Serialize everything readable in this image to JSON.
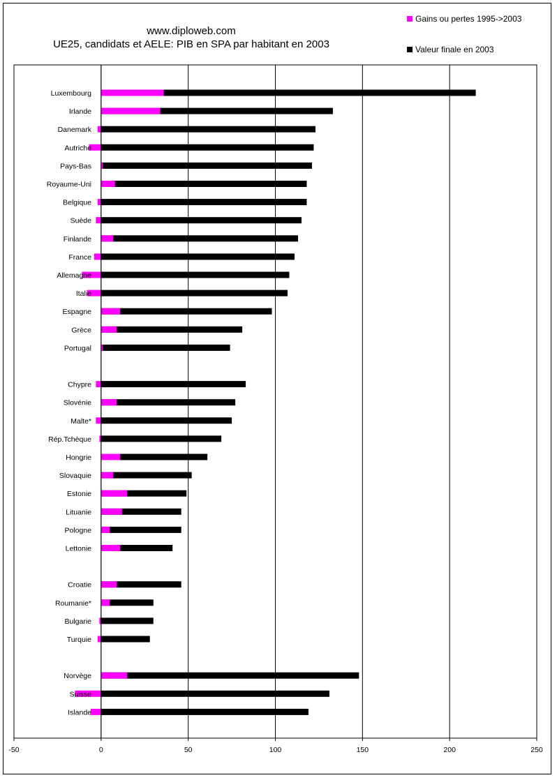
{
  "chart_data": {
    "type": "bar",
    "orientation": "horizontal",
    "stacked": false,
    "title": "www.diploweb.com",
    "subtitle": "UE25, candidats et AELE: PIB en SPA par habitant en 2003",
    "xlim": [
      -50,
      250
    ],
    "x_ticks": [
      "-50",
      "0",
      "50",
      "100",
      "150",
      "200",
      "250"
    ],
    "grid": true,
    "legend_position": "top-right",
    "colors": {
      "gains": "#ff00ff",
      "final": "#000000"
    },
    "series": [
      {
        "name": "Gains ou pertes 1995->2003",
        "color": "#ff00ff"
      },
      {
        "name": "Valeur finale en 2003",
        "color": "#000000"
      }
    ],
    "groups": [
      {
        "rows": [
          {
            "label": "Luxembourg",
            "gain": 36,
            "final": 215
          },
          {
            "label": "Irlande",
            "gain": 34,
            "final": 133
          },
          {
            "label": "Danemark",
            "gain": -2,
            "final": 123
          },
          {
            "label": "Autriche",
            "gain": -7,
            "final": 122
          },
          {
            "label": "Pays-Bas",
            "gain": 1,
            "final": 121
          },
          {
            "label": "Royaume-Uni",
            "gain": 8,
            "final": 118
          },
          {
            "label": "Belgique",
            "gain": -2,
            "final": 118
          },
          {
            "label": "Suède",
            "gain": -3,
            "final": 115
          },
          {
            "label": "Finlande",
            "gain": 7,
            "final": 113
          },
          {
            "label": "France",
            "gain": -4,
            "final": 111
          },
          {
            "label": "Allemagne",
            "gain": -11,
            "final": 108
          },
          {
            "label": "Italie",
            "gain": -8,
            "final": 107
          },
          {
            "label": "Espagne",
            "gain": 11,
            "final": 98
          },
          {
            "label": "Grèce",
            "gain": 9,
            "final": 81
          },
          {
            "label": "Portugal",
            "gain": 1,
            "final": 74
          }
        ]
      },
      {
        "rows": [
          {
            "label": "Chypre",
            "gain": -3,
            "final": 83
          },
          {
            "label": "Slovénie",
            "gain": 9,
            "final": 77
          },
          {
            "label": "Malte*",
            "gain": -3,
            "final": 75
          },
          {
            "label": "Rép.Tchèque",
            "gain": -1,
            "final": 69
          },
          {
            "label": "Hongrie",
            "gain": 11,
            "final": 61
          },
          {
            "label": "Slovaquie",
            "gain": 7,
            "final": 52
          },
          {
            "label": "Estonie",
            "gain": 15,
            "final": 49
          },
          {
            "label": "Lituanie",
            "gain": 12,
            "final": 46
          },
          {
            "label": "Pologne",
            "gain": 5,
            "final": 46
          },
          {
            "label": "Lettonie",
            "gain": 11,
            "final": 41
          }
        ]
      },
      {
        "rows": [
          {
            "label": "Croatie",
            "gain": 9,
            "final": 46
          },
          {
            "label": "Roumanie*",
            "gain": 5,
            "final": 30
          },
          {
            "label": "Bulgarie",
            "gain": -1,
            "final": 30
          },
          {
            "label": "Turquie",
            "gain": -2,
            "final": 28
          }
        ]
      },
      {
        "rows": [
          {
            "label": "Norvège",
            "gain": 15,
            "final": 148
          },
          {
            "label": "Suisse",
            "gain": -15,
            "final": 131
          },
          {
            "label": "Islande",
            "gain": -6,
            "final": 119
          }
        ]
      }
    ]
  }
}
